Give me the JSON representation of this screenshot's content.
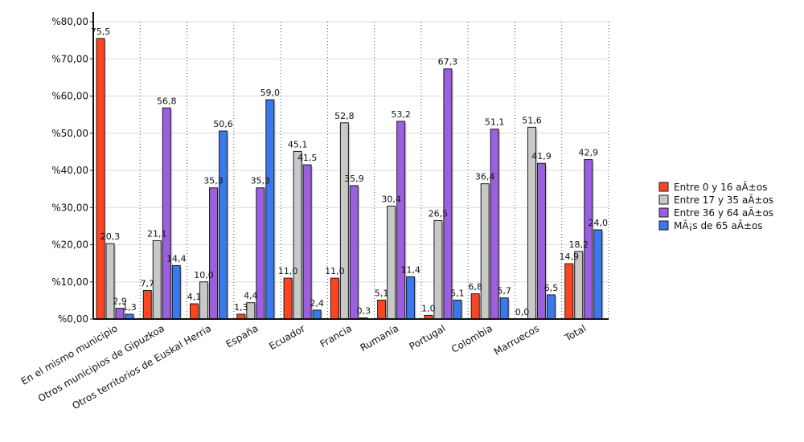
{
  "chart_data": {
    "type": "bar",
    "categories": [
      "En el mismo municipio",
      "Otros municipios de Gipuzkoa",
      "Otros territorios de Euskal Herria",
      "España",
      "Ecuador",
      "Francia",
      "Rumanía",
      "Portugal",
      "Colombia",
      "Marruecos",
      "Total"
    ],
    "series": [
      {
        "name": "Entre 0 y 16 aÃ±os",
        "values": [
          75.5,
          7.7,
          4.1,
          1.3,
          11.0,
          11.0,
          5.1,
          1.0,
          6.8,
          0.0,
          14.9
        ],
        "labels": [
          "75,5",
          "7,7",
          "4,1",
          "1,3",
          "11,0",
          "11,0",
          "5,1",
          "1,0",
          "6,8",
          "0,0",
          "14,9"
        ]
      },
      {
        "name": "Entre 17 y 35 aÃ±os",
        "values": [
          20.3,
          21.1,
          10.0,
          4.4,
          45.1,
          52.8,
          30.4,
          26.5,
          36.4,
          51.6,
          18.2
        ],
        "labels": [
          "20,3",
          "21,1",
          "10,0",
          "4,4",
          "45,1",
          "52,8",
          "30,4",
          "26,5",
          "36,4",
          "51,6",
          "18,2"
        ]
      },
      {
        "name": "Entre 36 y 64 aÃ±os",
        "values": [
          2.9,
          56.8,
          35.3,
          35.3,
          41.5,
          35.9,
          53.2,
          67.3,
          51.1,
          41.9,
          42.9
        ],
        "labels": [
          "2,9",
          "56,8",
          "35,3",
          "35,3",
          "41,5",
          "35,9",
          "53,2",
          "67,3",
          "51,1",
          "41,9",
          "42,9"
        ]
      },
      {
        "name": "MÃ¡s de 65 aÃ±os",
        "values": [
          1.3,
          14.4,
          50.6,
          59.0,
          2.4,
          0.3,
          11.4,
          5.1,
          5.7,
          6.5,
          24.0
        ],
        "labels": [
          "1,3",
          "14,4",
          "50,6",
          "59,0",
          "2,4",
          "0,3",
          "11,4",
          "5,1",
          "5,7",
          "6,5",
          "24,0"
        ]
      }
    ],
    "colors": [
      "#ff4422",
      "#c8c8c8",
      "#9b5fe0",
      "#3a78ee"
    ],
    "ylim": [
      0,
      80
    ],
    "yticks": [
      0,
      10,
      20,
      30,
      40,
      50,
      60,
      70,
      80
    ],
    "ytick_labels": [
      "%0,00",
      "%10,00",
      "%20,00",
      "%30,00",
      "%40,00",
      "%50,00",
      "%60,00",
      "%70,00",
      "%80,00"
    ],
    "title": "",
    "xlabel": "",
    "ylabel": "",
    "grid": true,
    "legend": "right"
  }
}
